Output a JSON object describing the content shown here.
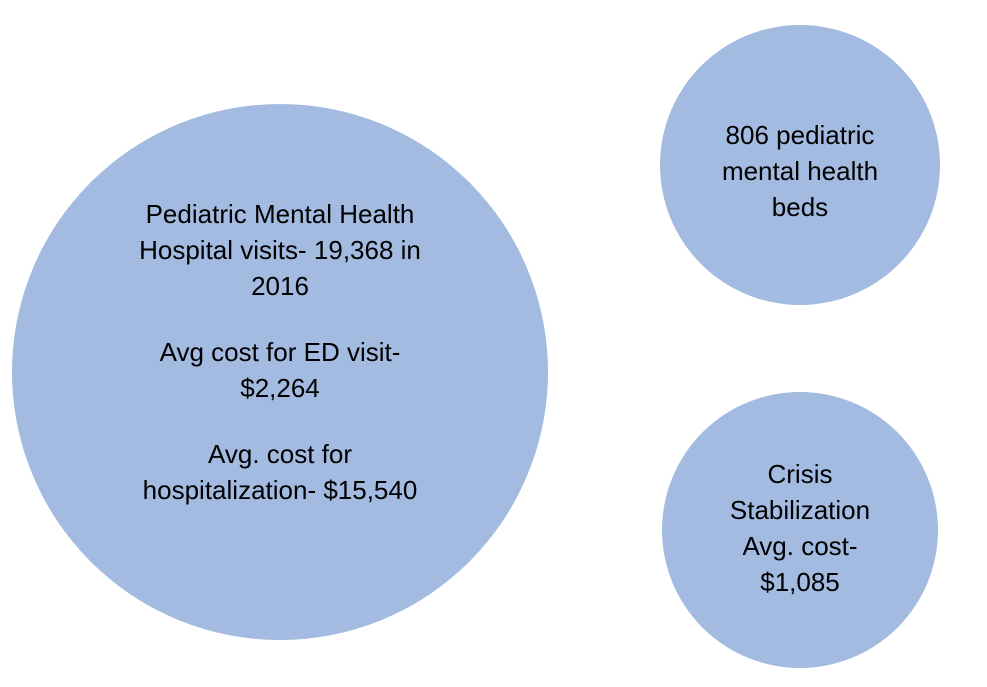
{
  "nodes": [
    {
      "paragraphs": [
        [
          "Pediatric Mental Health",
          "Hospital visits- 19,368 in",
          "2016"
        ],
        [
          "Avg cost for ED visit-",
          "$2,264"
        ],
        [
          "Avg. cost for",
          "hospitalization- $15,540"
        ]
      ]
    },
    {
      "paragraphs": [
        [
          "806 pediatric",
          "mental health",
          "beds"
        ]
      ]
    },
    {
      "paragraphs": [
        [
          "Crisis",
          "Stabilization",
          "Avg. cost-",
          "$1,085"
        ]
      ]
    }
  ]
}
